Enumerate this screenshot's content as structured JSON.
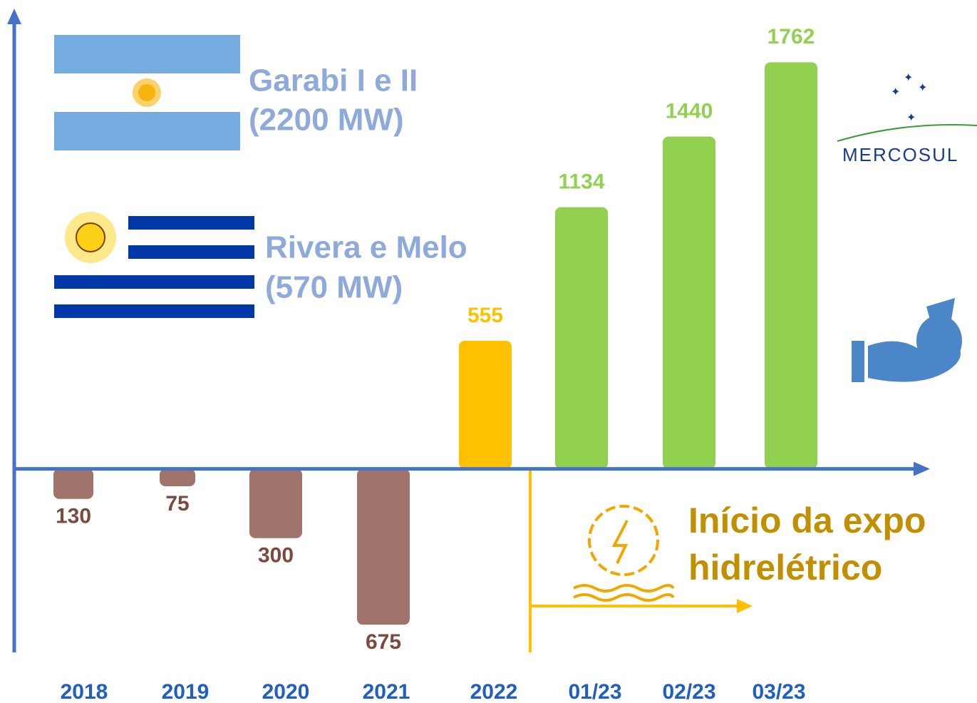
{
  "chart_data": {
    "type": "bar",
    "categories": [
      "2018",
      "2019",
      "2020",
      "2021",
      "2022",
      "01/23",
      "02/23",
      "03/23"
    ],
    "values": [
      -130,
      -75,
      -300,
      -675,
      555,
      1134,
      1440,
      1762
    ],
    "value_labels": [
      "130",
      "75",
      "300",
      "675",
      "555",
      "1134",
      "1440",
      "1762"
    ],
    "colors": [
      "#a0746a",
      "#a0746a",
      "#a0746a",
      "#a0746a",
      "#ffc000",
      "#92d050",
      "#92d050",
      "#92d050"
    ],
    "ylim": [
      -795,
      1970
    ],
    "annotations": [
      "Garabi I e II",
      "(2200 MW)",
      "Rivera e Melo",
      "(570 MW)",
      "Início da expo",
      "hidrelétrico",
      "MERCOSUL"
    ]
  }
}
